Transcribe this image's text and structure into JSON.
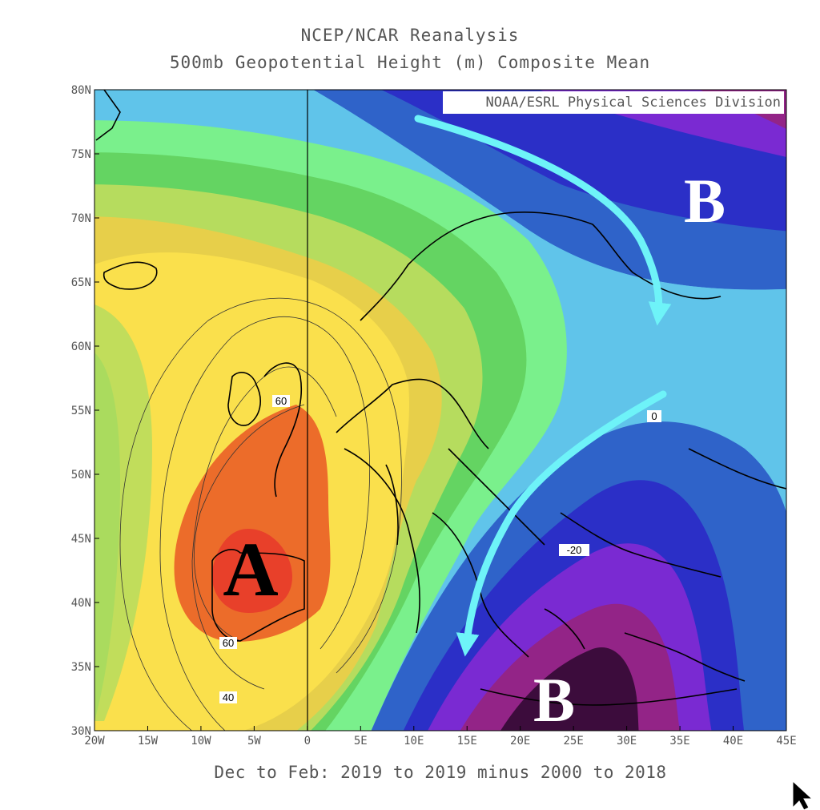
{
  "title_line1": "NCEP/NCAR Reanalysis",
  "title_line2": "500mb Geopotential Height (m) Composite Mean",
  "credit": "NOAA/ESRL Physical Sciences Division",
  "footer": "Dec to Feb: 2019 to 2019 minus 2000 to 2018",
  "axes": {
    "lon_labels": [
      "20W",
      "15W",
      "10W",
      "5W",
      "0",
      "5E",
      "10E",
      "15E",
      "20E",
      "25E",
      "30E",
      "35E",
      "40E",
      "45E"
    ],
    "lat_labels": [
      "80N",
      "75N",
      "70N",
      "65N",
      "60N",
      "55N",
      "50N",
      "45N",
      "40N",
      "35N",
      "30N"
    ],
    "lon_range": [
      -20,
      45
    ],
    "lat_range": [
      30,
      80
    ]
  },
  "contour_labels": [
    "60",
    "60",
    "40",
    "0",
    "-20"
  ],
  "annotations": {
    "high": "A",
    "low_north": "B",
    "low_south": "B"
  },
  "colors": {
    "arrow": "#6ef3f8",
    "high_core": "#e8402a",
    "low_core": "#3c0c3c"
  }
}
